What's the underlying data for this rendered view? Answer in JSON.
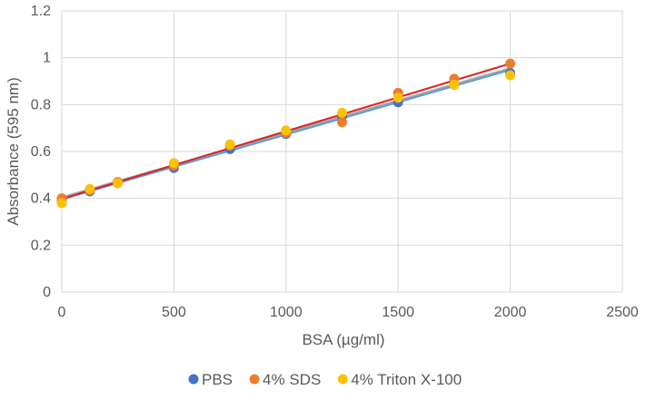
{
  "chart_data": {
    "type": "scatter",
    "title": "",
    "xlabel": "BSA (µg/ml)",
    "ylabel": "Absorbance (595 nm)",
    "xlim": [
      0,
      2500
    ],
    "ylim": [
      0,
      1.2
    ],
    "xticks": [
      "0",
      "500",
      "1000",
      "1500",
      "2000",
      "2500"
    ],
    "yticks": [
      "0",
      "0.2",
      "0.4",
      "0.6",
      "0.8",
      "1",
      "1.2"
    ],
    "grid": true,
    "legend_position": "bottom",
    "series": [
      {
        "name": "PBS",
        "color": "#4472C4",
        "trendline_color": "#5B9BD5",
        "x": [
          0,
          125,
          250,
          500,
          750,
          1000,
          1250,
          1500,
          1750,
          2000
        ],
        "y": [
          0.39,
          0.43,
          0.465,
          0.53,
          0.61,
          0.675,
          0.75,
          0.81,
          0.885,
          0.935
        ]
      },
      {
        "name": "4% SDS",
        "color": "#ED7D31",
        "trendline_color": "#E02020",
        "x": [
          0,
          125,
          250,
          500,
          750,
          1000,
          1250,
          1500,
          1750,
          2000
        ],
        "y": [
          0.4,
          0.435,
          0.47,
          0.54,
          0.625,
          0.68,
          0.725,
          0.85,
          0.91,
          0.975
        ]
      },
      {
        "name": "4% Triton X-100",
        "color": "#FFC000",
        "trendline_color": "#A5A5A5",
        "x": [
          0,
          125,
          250,
          500,
          750,
          1000,
          1250,
          1500,
          1750,
          2000
        ],
        "y": [
          0.38,
          0.44,
          0.465,
          0.55,
          0.63,
          0.69,
          0.765,
          0.83,
          0.885,
          0.925
        ]
      }
    ]
  }
}
